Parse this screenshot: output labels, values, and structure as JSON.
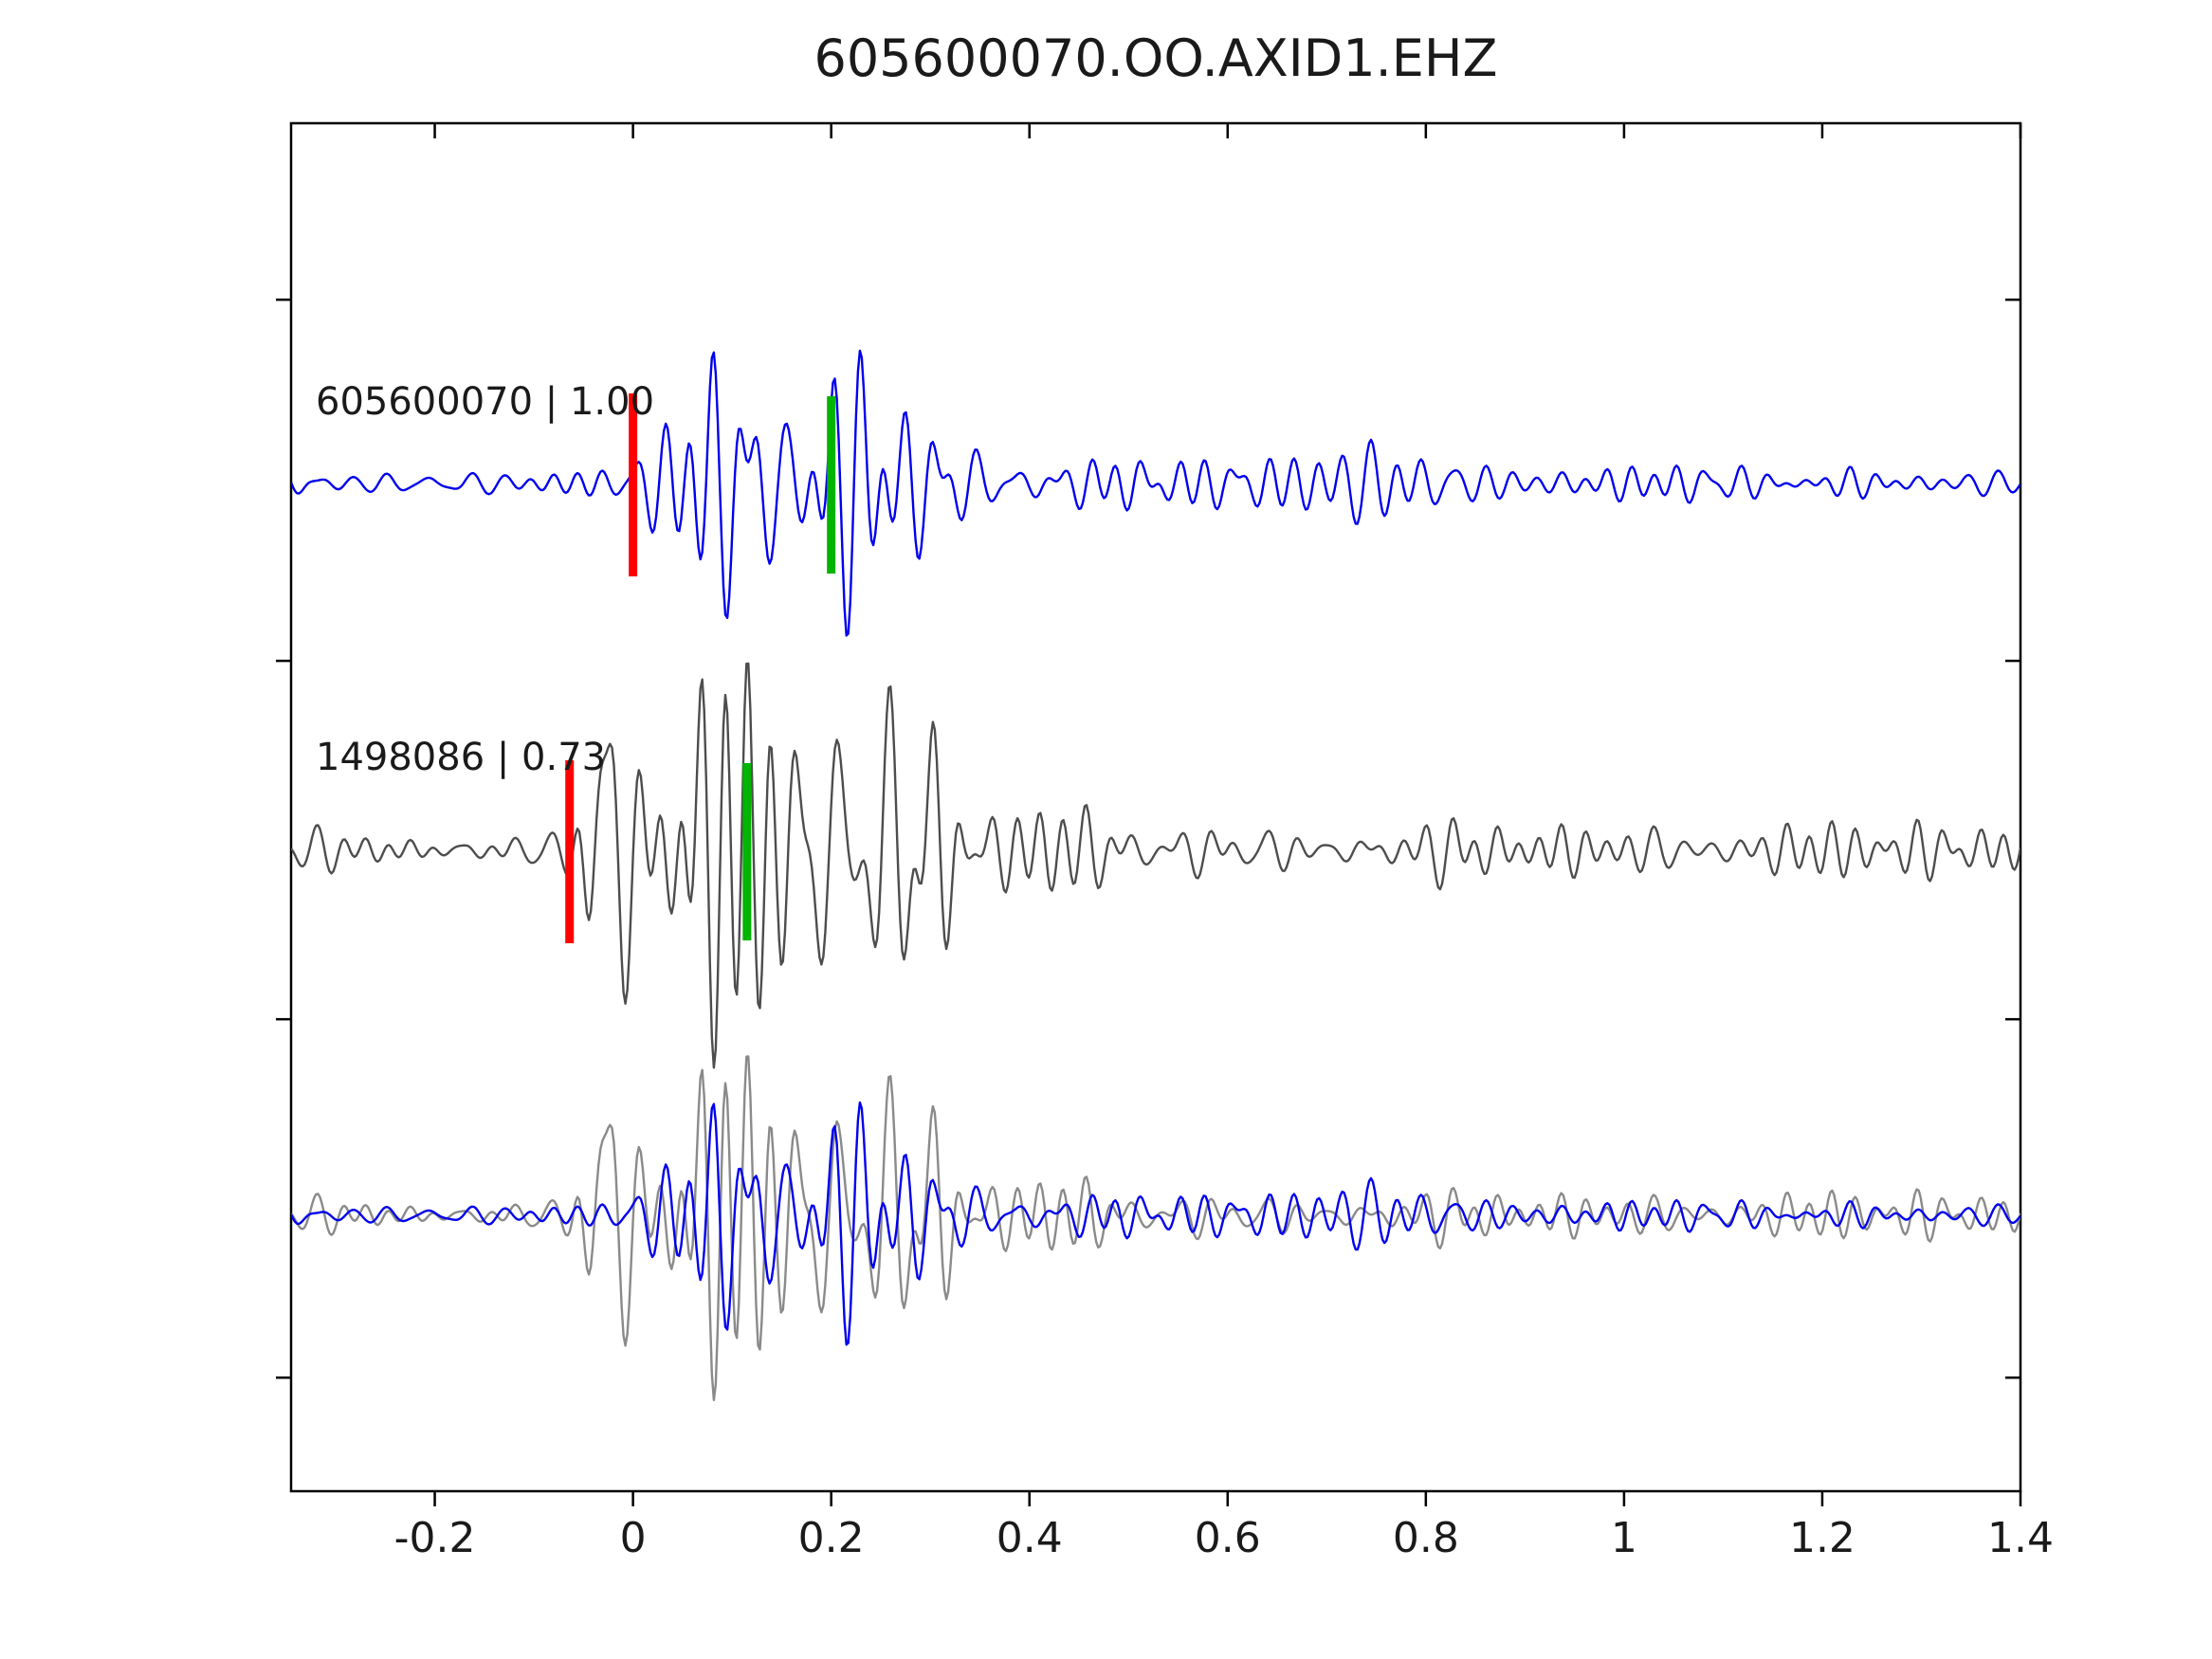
{
  "chart_data": {
    "type": "line",
    "subtype": "seismogram-cross-correlation",
    "title": "605600070.OO.AXID1.EHZ",
    "xlim": [
      -0.345,
      1.4
    ],
    "x_ticks": [
      -0.2,
      0,
      0.2,
      0.4,
      0.6,
      0.8,
      1,
      1.2,
      1.4
    ],
    "x_tick_labels": [
      "-0.2",
      "0",
      "0.2",
      "0.4",
      "0.6",
      "0.8",
      "1",
      "1.2",
      "1.4"
    ],
    "grid": false,
    "legend": "none",
    "colors": {
      "template_trace": "#0000ee",
      "match_trace": "#4d4d4d",
      "overlay_gray": "#8a8a8a",
      "red_pick": "#ff0000",
      "green_pick": "#00b400",
      "axis": "#000000"
    },
    "traces": [
      {
        "name": "template",
        "id": "605600070",
        "correlation": 1.0,
        "label": "605600070 | 1.00",
        "color": "#0000ee",
        "pick_red_x": 0.0,
        "pick_green_x": 0.2,
        "synth": {
          "seed": 11,
          "freq": [
            20,
            48
          ],
          "n": 26,
          "onset": 0.0,
          "noise_amp": 8,
          "bursts": [
            {
              "c": 0.13,
              "w": 0.055,
              "amp": 95
            },
            {
              "c": 0.21,
              "w": 0.045,
              "amp": 75
            },
            {
              "c": 0.31,
              "w": 0.05,
              "amp": 40
            }
          ],
          "coda": {
            "amp": 14,
            "tau": 0.8
          }
        }
      },
      {
        "name": "match",
        "id": "1498086",
        "correlation": 0.73,
        "label": "1498086 | 0.73",
        "color": "#4d4d4d",
        "pick_red_x": -0.064,
        "pick_green_x": 0.115,
        "synth": {
          "seed": 23,
          "freq": [
            20,
            48
          ],
          "n": 26,
          "onset": -0.065,
          "noise_amp": 9,
          "bursts": [
            {
              "c": -0.03,
              "w": 0.025,
              "amp": 110
            },
            {
              "c": 0.1,
              "w": 0.07,
              "amp": 80
            },
            {
              "c": 0.22,
              "w": 0.06,
              "amp": 85
            },
            {
              "c": 0.31,
              "w": 0.04,
              "amp": 50
            }
          ],
          "coda": {
            "amp": 16,
            "tau": 0.9
          }
        }
      },
      {
        "name": "overlay",
        "label": "",
        "components": [
          "match",
          "template"
        ],
        "scale": 0.85
      }
    ]
  }
}
